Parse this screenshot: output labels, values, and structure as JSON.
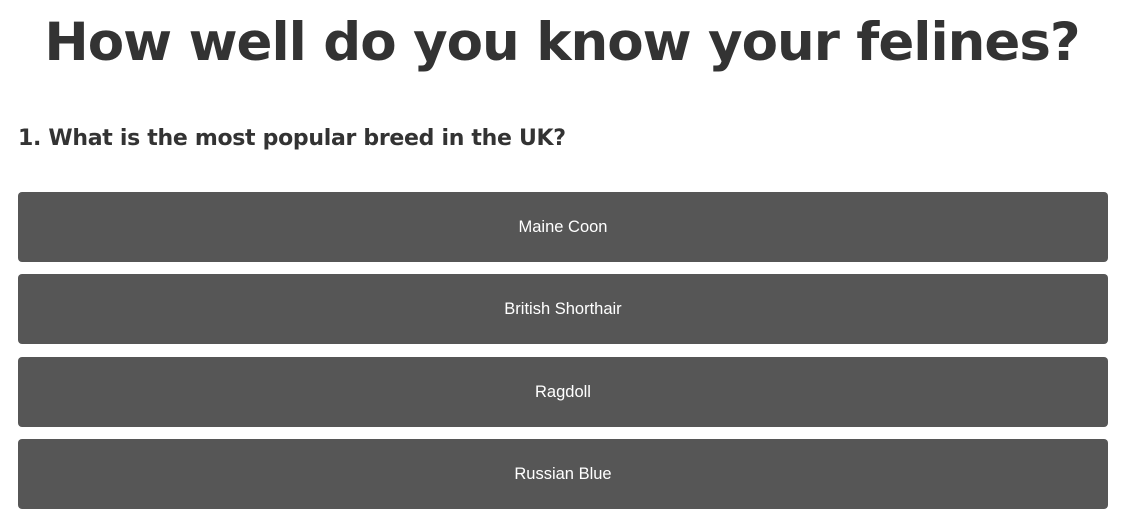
{
  "quiz": {
    "title": "How well do you know your felines?",
    "question": "1. What is the most popular breed in the UK?",
    "answers": [
      {
        "label": "Maine Coon"
      },
      {
        "label": "British Shorthair"
      },
      {
        "label": "Ragdoll"
      },
      {
        "label": "Russian Blue"
      }
    ]
  },
  "colors": {
    "text": "#333333",
    "button_bg": "#565656",
    "button_text": "#ffffff",
    "page_bg": "#ffffff"
  }
}
